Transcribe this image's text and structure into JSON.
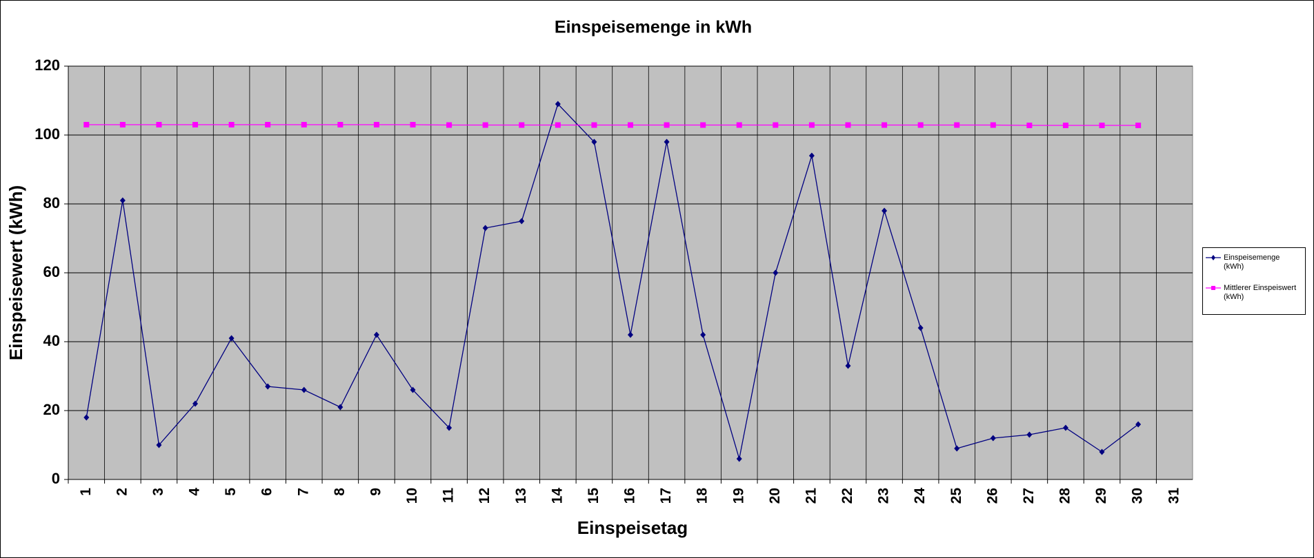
{
  "chart_data": {
    "type": "line",
    "title": "Einspeisemenge in kWh",
    "xlabel": "Einspeisetag",
    "ylabel": "Einspeisewert  (kWh)",
    "categories": [
      "1",
      "2",
      "3",
      "4",
      "5",
      "6",
      "7",
      "8",
      "9",
      "10",
      "11",
      "12",
      "13",
      "14",
      "15",
      "16",
      "17",
      "18",
      "19",
      "20",
      "21",
      "22",
      "23",
      "24",
      "25",
      "26",
      "27",
      "28",
      "29",
      "30",
      "31"
    ],
    "series": [
      {
        "name": "Einspeisemenge (kWh)",
        "color": "#000080",
        "marker": "diamond",
        "values": [
          18,
          81,
          10,
          22,
          41,
          27,
          26,
          21,
          42,
          26,
          15,
          73,
          75,
          109,
          98,
          42,
          98,
          42,
          6,
          60,
          94,
          33,
          78,
          44,
          9,
          12,
          13,
          15,
          8,
          16,
          null
        ]
      },
      {
        "name": "Mittlerer Einspeiswert (kWh)",
        "color": "#ff00ff",
        "marker": "square",
        "values": [
          103,
          103,
          103,
          103,
          103,
          103,
          103,
          103,
          103,
          103,
          102.9,
          102.9,
          102.9,
          102.9,
          102.9,
          102.9,
          102.9,
          102.9,
          102.9,
          102.9,
          102.9,
          102.9,
          102.9,
          102.9,
          102.9,
          102.9,
          102.8,
          102.8,
          102.8,
          102.8,
          null
        ]
      }
    ],
    "ylim": [
      0,
      120
    ],
    "yticks": [
      0,
      20,
      40,
      60,
      80,
      100,
      120
    ],
    "grid": true,
    "legend": "right",
    "background": "#c0c0c0"
  }
}
